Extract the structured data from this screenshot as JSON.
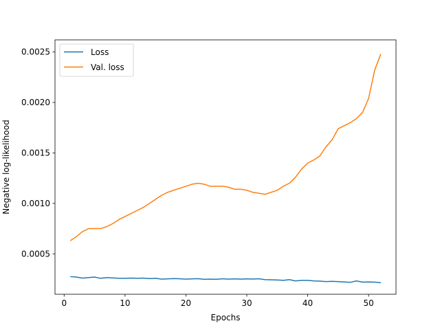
{
  "chart_data": {
    "type": "line",
    "title": "",
    "xlabel": "Epochs",
    "ylabel": "Negative log-likelihood",
    "xlim": [
      -1.5,
      54.5
    ],
    "ylim": [
      0.0001,
      0.00262
    ],
    "xticks": [
      0,
      10,
      20,
      30,
      40,
      50
    ],
    "xtick_labels": [
      "0",
      "10",
      "20",
      "30",
      "40",
      "50"
    ],
    "yticks": [
      0.0005,
      0.001,
      0.0015,
      0.002,
      0.0025
    ],
    "ytick_labels": [
      "0.0005",
      "0.0010",
      "0.0015",
      "0.0020",
      "0.0025"
    ],
    "grid": false,
    "legend_position": "upper-left",
    "x": [
      1,
      2,
      3,
      4,
      5,
      6,
      7,
      8,
      9,
      10,
      11,
      12,
      13,
      14,
      15,
      16,
      17,
      18,
      19,
      20,
      21,
      22,
      23,
      24,
      25,
      26,
      27,
      28,
      29,
      30,
      31,
      32,
      33,
      34,
      35,
      36,
      37,
      38,
      39,
      40,
      41,
      42,
      43,
      44,
      45,
      46,
      47,
      48,
      49,
      50,
      51,
      52
    ],
    "series": [
      {
        "name": "Loss",
        "color": "#1f77b4",
        "values": [
          0.000275,
          0.00027,
          0.00026,
          0.000265,
          0.00027,
          0.000258,
          0.000265,
          0.000262,
          0.000258,
          0.000258,
          0.00026,
          0.000258,
          0.00026,
          0.000255,
          0.000258,
          0.00025,
          0.000252,
          0.000255,
          0.000253,
          0.00025,
          0.000252,
          0.000254,
          0.000248,
          0.00025,
          0.000248,
          0.000253,
          0.00025,
          0.000252,
          0.00025,
          0.000252,
          0.000251,
          0.000253,
          0.000245,
          0.000243,
          0.000241,
          0.000238,
          0.000245,
          0.000232,
          0.000238,
          0.000238,
          0.000232,
          0.00023,
          0.000225,
          0.000228,
          0.000225,
          0.000222,
          0.000218,
          0.000232,
          0.00022,
          0.000222,
          0.00022,
          0.000215
        ]
      },
      {
        "name": "Val. loss",
        "color": "#ff7f0e",
        "values": [
          0.00063,
          0.00067,
          0.00072,
          0.00075,
          0.00075,
          0.00075,
          0.00077,
          0.0008,
          0.00084,
          0.00087,
          0.0009,
          0.00093,
          0.00096,
          0.001,
          0.00104,
          0.00108,
          0.00111,
          0.00113,
          0.00115,
          0.00117,
          0.00119,
          0.0012,
          0.00119,
          0.00117,
          0.00117,
          0.00117,
          0.00116,
          0.00114,
          0.00114,
          0.00113,
          0.00111,
          0.0011,
          0.00109,
          0.00111,
          0.00113,
          0.00117,
          0.0012,
          0.00126,
          0.00134,
          0.0014,
          0.00143,
          0.00147,
          0.00156,
          0.00163,
          0.00174,
          0.00177,
          0.0018,
          0.00184,
          0.0019,
          0.00204,
          0.00232,
          0.00248
        ]
      }
    ]
  }
}
